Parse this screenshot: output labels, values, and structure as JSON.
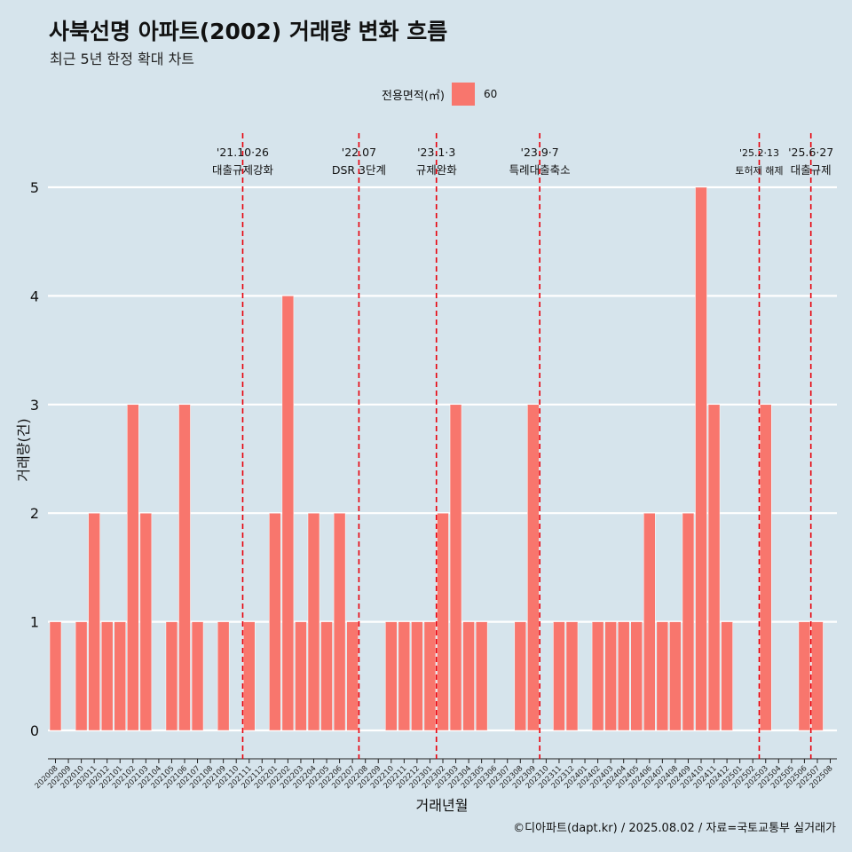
{
  "title": "사북선명 아파트(2002) 거래량 변화 흐름",
  "subtitle": "최근 5년 한정 확대 차트",
  "legend": {
    "title": "전용면적(㎡)",
    "label": "60"
  },
  "caption": "©디아파트(dapt.kr) / 2025.08.02 / 자료=국토교통부 실거래가",
  "colors": {
    "bar": "#f8766d",
    "vline": "#e8000b",
    "background": "#d6e4ec",
    "grid": "#ffffff"
  },
  "chart_data": {
    "type": "bar",
    "title": "사북선명 아파트(2002) 거래량 변화 흐름",
    "xlabel": "거래년월",
    "ylabel": "거래량(건)",
    "ylim": [
      0,
      5
    ],
    "yticks": [
      0,
      1,
      2,
      3,
      4,
      5
    ],
    "grid": true,
    "legend_position": "top",
    "categories": [
      "202008",
      "202009",
      "202010",
      "202011",
      "202012",
      "202101",
      "202102",
      "202103",
      "202104",
      "202105",
      "202106",
      "202107",
      "202108",
      "202109",
      "202110",
      "202111",
      "202112",
      "202201",
      "202202",
      "202203",
      "202204",
      "202205",
      "202206",
      "202207",
      "202208",
      "202209",
      "202210",
      "202211",
      "202212",
      "202301",
      "202302",
      "202303",
      "202304",
      "202305",
      "202306",
      "202307",
      "202308",
      "202309",
      "202310",
      "202311",
      "202312",
      "202401",
      "202402",
      "202403",
      "202404",
      "202405",
      "202406",
      "202407",
      "202408",
      "202409",
      "202410",
      "202411",
      "202412",
      "202501",
      "202502",
      "202503",
      "202504",
      "202505",
      "202506",
      "202507",
      "202508"
    ],
    "series": [
      {
        "name": "60",
        "values": [
          1,
          0,
          1,
          2,
          1,
          1,
          3,
          2,
          0,
          1,
          3,
          1,
          0,
          1,
          0,
          1,
          0,
          2,
          4,
          1,
          2,
          1,
          2,
          1,
          0,
          0,
          1,
          1,
          1,
          1,
          2,
          3,
          1,
          1,
          0,
          0,
          1,
          3,
          0,
          1,
          1,
          0,
          1,
          1,
          1,
          1,
          2,
          1,
          1,
          2,
          5,
          3,
          1,
          0,
          0,
          3,
          0,
          0,
          1,
          1,
          0
        ]
      }
    ],
    "annotations": [
      {
        "x": "202110",
        "line1": "'21.10·26",
        "line2": "대출규제강화"
      },
      {
        "x": "202207",
        "line1": "'22.07",
        "line2": "DSR 3단계"
      },
      {
        "x": "202301",
        "line1": "'23.1·3",
        "line2": "규제완화"
      },
      {
        "x": "202309",
        "line1": "'23.9·7",
        "line2": "특례대출축소"
      },
      {
        "x": "202502",
        "line1": "'25.2·13",
        "line2": "토허제 해제"
      },
      {
        "x": "202506",
        "line1": "'25.6·27",
        "line2": "대출규제"
      }
    ]
  }
}
